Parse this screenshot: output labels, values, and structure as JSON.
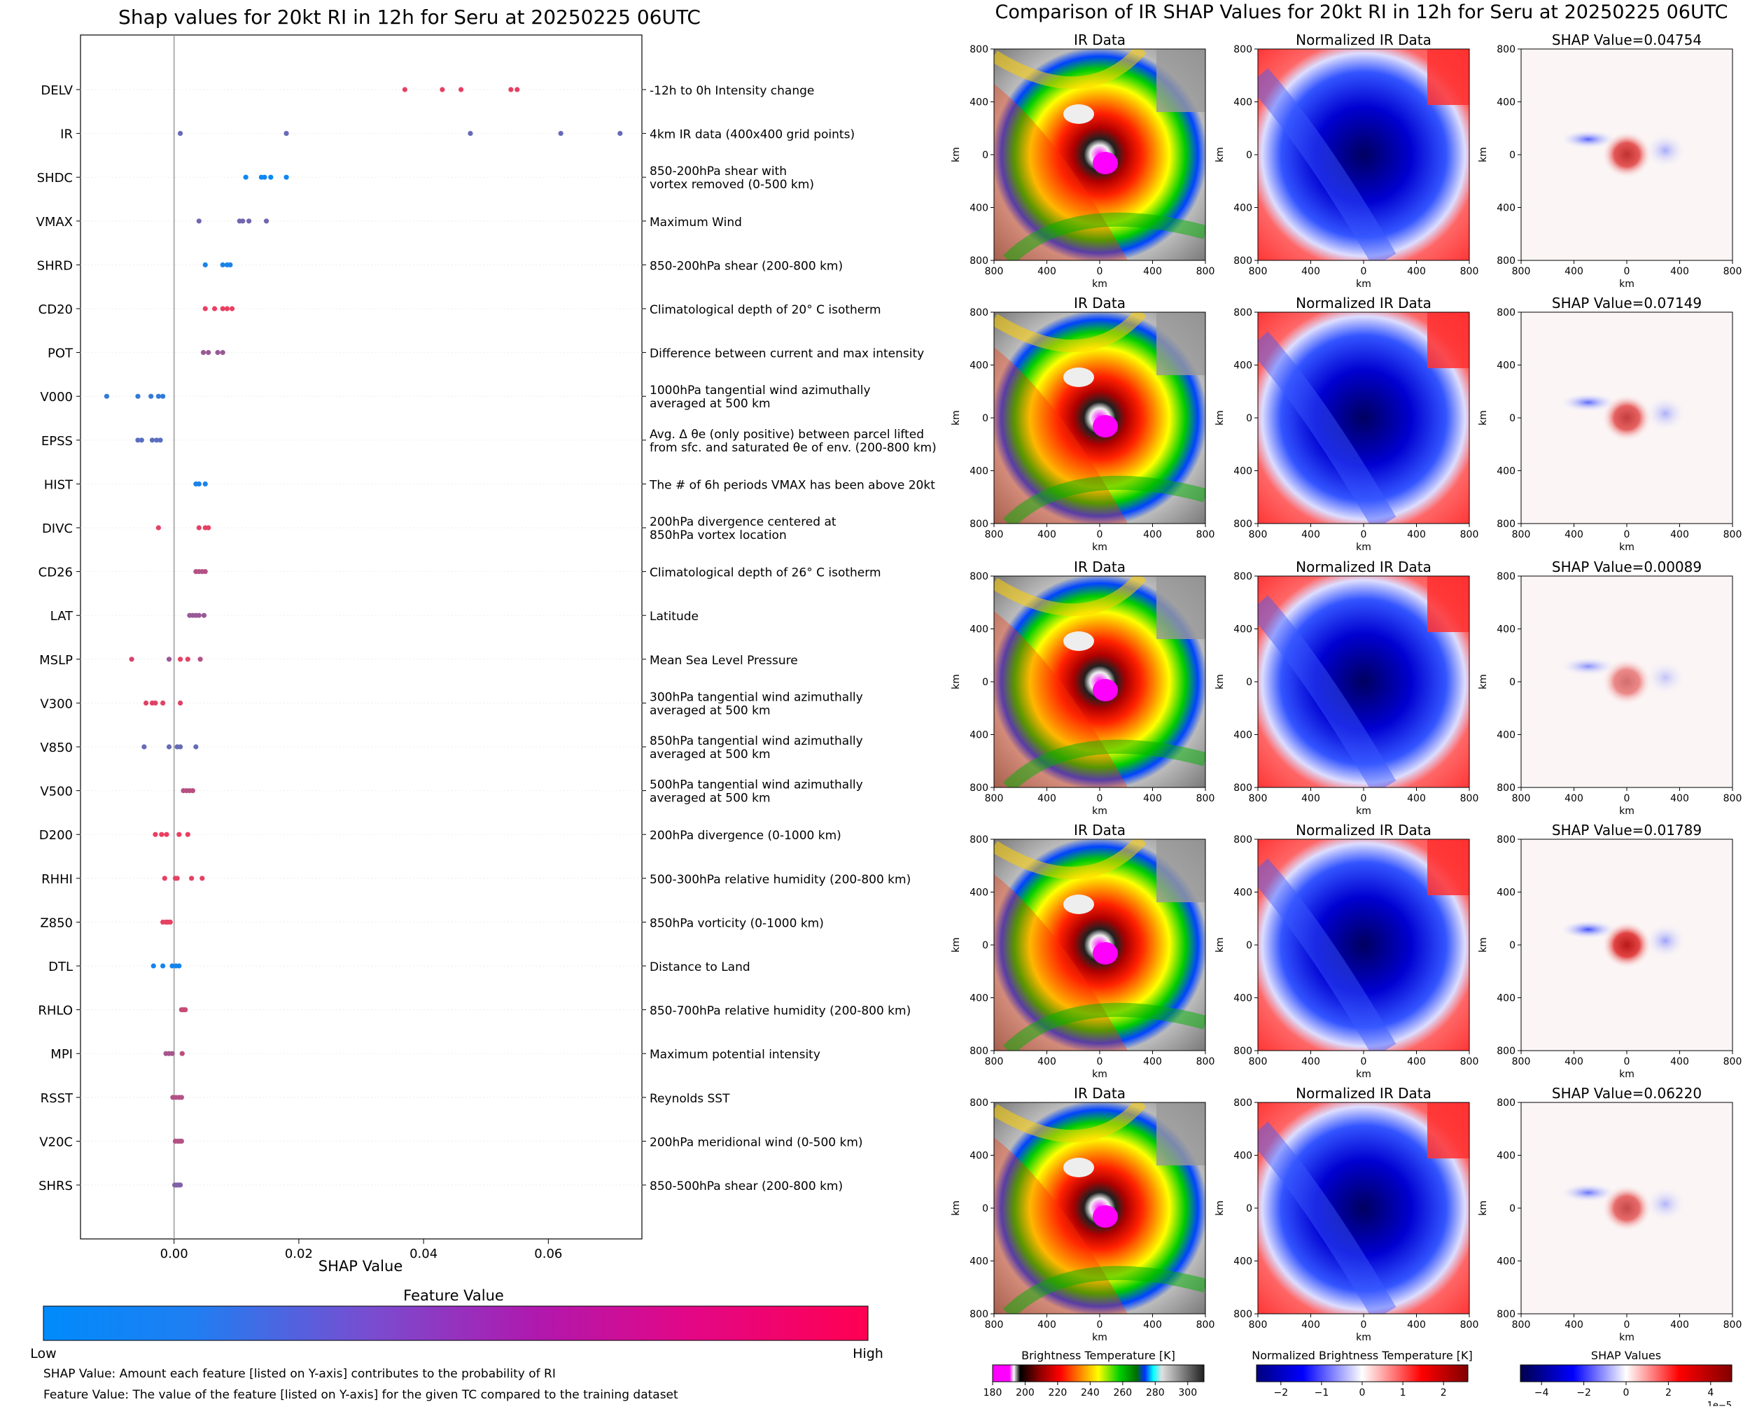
{
  "left_title": "Shap values for 20kt RI in 12h for Seru at 20250225 06UTC",
  "right_title": "Comparison of IR SHAP Values for 20kt RI in 12h for Seru at 20250225 06UTC",
  "chart_data": {
    "type": "scatter",
    "title": "Shap values for 20kt RI in 12h for Seru at 20250225 06UTC",
    "xlabel": "SHAP Value",
    "xlim": [
      -0.015,
      0.075
    ],
    "xticks": [
      0.0,
      0.02,
      0.04,
      0.06
    ],
    "xtick_labels": [
      "0.00",
      "0.02",
      "0.04",
      "0.06"
    ],
    "features": [
      {
        "name": "DELV",
        "description": [
          "-12h to 0h Intensity change"
        ],
        "points": [
          [
            0.037,
            0.9
          ],
          [
            0.043,
            0.9
          ],
          [
            0.046,
            0.9
          ],
          [
            0.054,
            0.9
          ],
          [
            0.055,
            0.9
          ]
        ]
      },
      {
        "name": "IR",
        "description": [
          "4km IR data (400x400 grid points)"
        ],
        "points": [
          [
            0.001,
            0.4
          ],
          [
            0.018,
            0.4
          ],
          [
            0.0475,
            0.4
          ],
          [
            0.062,
            0.4
          ],
          [
            0.0715,
            0.4
          ]
        ]
      },
      {
        "name": "SHDC",
        "description": [
          "850-200hPa shear with",
          "vortex removed (0-500 km)"
        ],
        "points": [
          [
            0.0115,
            0.05
          ],
          [
            0.014,
            0.05
          ],
          [
            0.0145,
            0.05
          ],
          [
            0.0155,
            0.05
          ],
          [
            0.018,
            0.05
          ]
        ]
      },
      {
        "name": "VMAX",
        "description": [
          "Maximum Wind"
        ],
        "points": [
          [
            0.004,
            0.45
          ],
          [
            0.0105,
            0.45
          ],
          [
            0.011,
            0.45
          ],
          [
            0.012,
            0.45
          ],
          [
            0.0148,
            0.45
          ]
        ]
      },
      {
        "name": "SHRD",
        "description": [
          "850-200hPa shear (200-800 km)"
        ],
        "points": [
          [
            0.005,
            0.1
          ],
          [
            0.0078,
            0.1
          ],
          [
            0.0085,
            0.1
          ],
          [
            0.009,
            0.1
          ]
        ]
      },
      {
        "name": "CD20",
        "description": [
          "Climatological depth of 20° C isotherm"
        ],
        "points": [
          [
            0.005,
            0.92
          ],
          [
            0.0065,
            0.92
          ],
          [
            0.0078,
            0.92
          ],
          [
            0.0085,
            0.92
          ],
          [
            0.0093,
            0.92
          ]
        ]
      },
      {
        "name": "POT",
        "description": [
          "Difference between current and max intensity"
        ],
        "points": [
          [
            0.0047,
            0.6
          ],
          [
            0.0055,
            0.6
          ],
          [
            0.007,
            0.6
          ],
          [
            0.0078,
            0.6
          ]
        ]
      },
      {
        "name": "V000",
        "description": [
          "1000hPa tangential wind azimuthally",
          "averaged at 500 km"
        ],
        "points": [
          [
            -0.0108,
            0.2
          ],
          [
            -0.0058,
            0.2
          ],
          [
            -0.0037,
            0.2
          ],
          [
            -0.0025,
            0.2
          ],
          [
            -0.0018,
            0.2
          ]
        ]
      },
      {
        "name": "EPSS",
        "description": [
          "Avg. Δ θe (only positive) between parcel lifted",
          "from sfc. and saturated θe of env. (200-800 km)"
        ],
        "points": [
          [
            -0.0058,
            0.35
          ],
          [
            -0.0052,
            0.35
          ],
          [
            -0.0035,
            0.35
          ],
          [
            -0.0028,
            0.35
          ],
          [
            -0.0022,
            0.35
          ]
        ]
      },
      {
        "name": "HIST",
        "description": [
          "The # of 6h periods VMAX has been above 20kt"
        ],
        "points": [
          [
            0.0035,
            0.1
          ],
          [
            0.004,
            0.1
          ],
          [
            0.005,
            0.1
          ]
        ]
      },
      {
        "name": "DIVC",
        "description": [
          "200hPa divergence centered at",
          "850hPa vortex location"
        ],
        "points": [
          [
            -0.0025,
            0.9
          ],
          [
            0.004,
            0.9
          ],
          [
            0.005,
            0.9
          ],
          [
            0.0055,
            0.9
          ]
        ]
      },
      {
        "name": "CD26",
        "description": [
          "Climatological depth of 26° C isotherm"
        ],
        "points": [
          [
            0.0035,
            0.7
          ],
          [
            0.004,
            0.7
          ],
          [
            0.0045,
            0.7
          ],
          [
            0.005,
            0.7
          ]
        ]
      },
      {
        "name": "LAT",
        "description": [
          "Latitude"
        ],
        "points": [
          [
            0.0025,
            0.6
          ],
          [
            0.003,
            0.6
          ],
          [
            0.0035,
            0.6
          ],
          [
            0.004,
            0.6
          ],
          [
            0.0048,
            0.6
          ]
        ]
      },
      {
        "name": "MSLP",
        "description": [
          "Mean Sea Level Pressure"
        ],
        "points": [
          [
            -0.0068,
            0.85
          ],
          [
            -0.0008,
            0.6
          ],
          [
            0.001,
            0.9
          ],
          [
            0.0022,
            0.9
          ],
          [
            0.0042,
            0.7
          ]
        ]
      },
      {
        "name": "V300",
        "description": [
          "300hPa tangential wind azimuthally",
          "averaged at 500 km"
        ],
        "points": [
          [
            -0.0045,
            0.88
          ],
          [
            -0.0035,
            0.88
          ],
          [
            -0.003,
            0.88
          ],
          [
            -0.0018,
            0.88
          ],
          [
            0.001,
            0.88
          ]
        ]
      },
      {
        "name": "V850",
        "description": [
          "850hPa tangential wind azimuthally",
          "averaged at 500 km"
        ],
        "points": [
          [
            -0.0048,
            0.4
          ],
          [
            -0.0008,
            0.4
          ],
          [
            0.0005,
            0.4
          ],
          [
            0.001,
            0.4
          ],
          [
            0.0035,
            0.4
          ]
        ]
      },
      {
        "name": "V500",
        "description": [
          "500hPa tangential wind azimuthally",
          "averaged at 500 km"
        ],
        "points": [
          [
            0.0015,
            0.72
          ],
          [
            0.002,
            0.72
          ],
          [
            0.0025,
            0.72
          ],
          [
            0.003,
            0.72
          ]
        ]
      },
      {
        "name": "D200",
        "description": [
          "200hPa divergence (0-1000 km)"
        ],
        "points": [
          [
            -0.003,
            0.92
          ],
          [
            -0.002,
            0.92
          ],
          [
            -0.0012,
            0.92
          ],
          [
            0.0008,
            0.92
          ],
          [
            0.0022,
            0.92
          ]
        ]
      },
      {
        "name": "RHHI",
        "description": [
          "500-300hPa relative humidity (200-800 km)"
        ],
        "points": [
          [
            -0.0015,
            0.9
          ],
          [
            0.0002,
            0.9
          ],
          [
            0.0005,
            0.9
          ],
          [
            0.0028,
            0.9
          ],
          [
            0.0045,
            0.9
          ]
        ]
      },
      {
        "name": "Z850",
        "description": [
          "850hPa vorticity (0-1000 km)"
        ],
        "points": [
          [
            -0.0018,
            0.9
          ],
          [
            -0.0013,
            0.9
          ],
          [
            -0.001,
            0.9
          ],
          [
            -0.0006,
            0.9
          ]
        ]
      },
      {
        "name": "DTL",
        "description": [
          "Distance to Land"
        ],
        "points": [
          [
            -0.0033,
            0.08
          ],
          [
            -0.0018,
            0.08
          ],
          [
            -0.0003,
            0.08
          ],
          [
            0.0003,
            0.08
          ],
          [
            0.0008,
            0.08
          ]
        ]
      },
      {
        "name": "RHLO",
        "description": [
          "850-700hPa relative humidity (200-800 km)"
        ],
        "points": [
          [
            0.0012,
            0.78
          ],
          [
            0.0015,
            0.78
          ],
          [
            0.0018,
            0.78
          ]
        ]
      },
      {
        "name": "MPI",
        "description": [
          "Maximum potential intensity"
        ],
        "points": [
          [
            -0.0013,
            0.65
          ],
          [
            -0.0008,
            0.65
          ],
          [
            -0.0003,
            0.65
          ],
          [
            0.0013,
            0.75
          ]
        ]
      },
      {
        "name": "RSST",
        "description": [
          "Reynolds SST"
        ],
        "points": [
          [
            -0.0002,
            0.7
          ],
          [
            0.0003,
            0.7
          ],
          [
            0.0008,
            0.7
          ],
          [
            0.0012,
            0.7
          ]
        ]
      },
      {
        "name": "V20C",
        "description": [
          "200hPa meridional wind (0-500 km)"
        ],
        "points": [
          [
            0.0002,
            0.7
          ],
          [
            0.0006,
            0.7
          ],
          [
            0.0009,
            0.7
          ],
          [
            0.0012,
            0.7
          ]
        ]
      },
      {
        "name": "SHRS",
        "description": [
          "850-500hPa shear (200-800 km)"
        ],
        "points": [
          [
            0.0001,
            0.5
          ],
          [
            0.0004,
            0.5
          ],
          [
            0.0007,
            0.5
          ],
          [
            0.001,
            0.5
          ]
        ]
      }
    ],
    "colorbar": {
      "label": "Feature Value",
      "low": "Low",
      "high": "High",
      "colors": [
        "#008bfb",
        "#ff0052"
      ]
    },
    "notes": [
      "SHAP Value: Amount each feature [listed on Y-axis] contributes to the probability of RI",
      "Feature Value: The value of the feature [listed on Y-axis] for the given TC compared to the training dataset"
    ]
  },
  "panels": {
    "columns": [
      "IR Data",
      "Normalized IR Data"
    ],
    "shap_titles": [
      "SHAP Value=0.04754",
      "SHAP Value=0.07149",
      "SHAP Value=0.00089",
      "SHAP Value=0.01789",
      "SHAP Value=0.06220"
    ],
    "shap_intensity": [
      0.8,
      0.75,
      0.55,
      0.9,
      0.7
    ],
    "axis_unit": "km",
    "ticks": [
      "800",
      "400",
      "0",
      "400",
      "800"
    ],
    "colorbars": [
      {
        "label": "Brightness Temperature [K]",
        "ticks": [
          "180",
          "200",
          "220",
          "240",
          "260",
          "280",
          "300"
        ],
        "range": [
          180,
          310
        ]
      },
      {
        "label": "Normalized Brightness Temperature [K]",
        "ticks": [
          "−2",
          "−1",
          "0",
          "1",
          "2"
        ],
        "range": [
          -2.6,
          2.6
        ]
      },
      {
        "label": "SHAP Values",
        "ticks": [
          "−4",
          "−2",
          "0",
          "2",
          "4"
        ],
        "range": [
          -5,
          5
        ],
        "exponent": "1e−5"
      }
    ]
  }
}
